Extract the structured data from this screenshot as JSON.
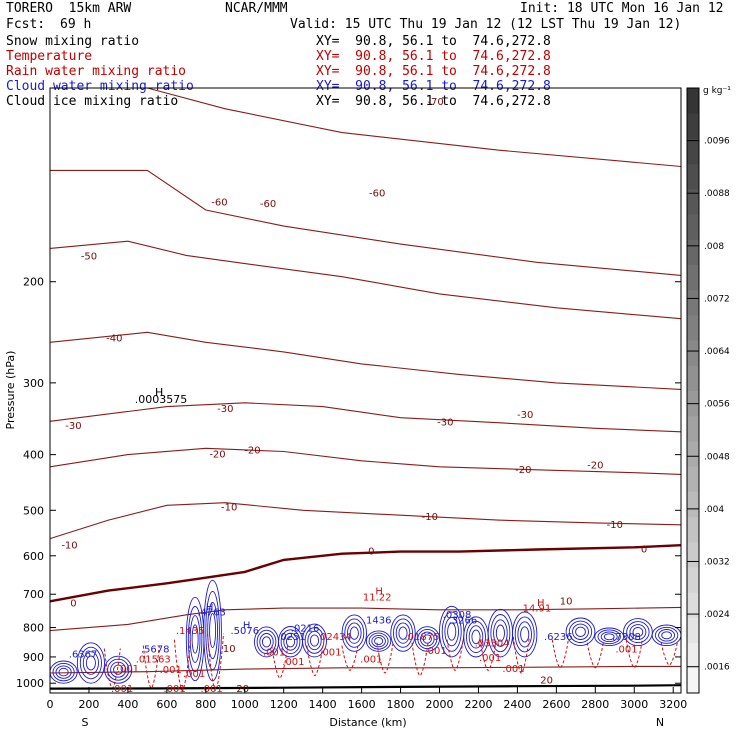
{
  "header": {
    "model": "TORERO  15km ARW",
    "center": "NCAR/MMM",
    "init": "Init: 18 UTC Mon 16 Jan 12",
    "fcst_label": "Fcst:",
    "fcst_value": "69 h",
    "valid": "Valid: 15 UTC Thu 19 Jan 12 (12 LST Thu 19 Jan 12)"
  },
  "legend": [
    {
      "label": "Snow mixing ratio",
      "xy": "XY=  90.8, 56.1 to  74.6,272.8",
      "color": "#000000"
    },
    {
      "label": "Temperature",
      "xy": "XY=  90.8, 56.1 to  74.6,272.8",
      "color": "#c00000"
    },
    {
      "label": "Rain water mixing ratio",
      "xy": "XY=  90.8, 56.1 to  74.6,272.8",
      "color": "#c00000"
    },
    {
      "label": "Cloud water mixing ratio",
      "xy": "XY=  90.8, 56.1 to  74.6,272.8",
      "color": "#1a1ad0"
    },
    {
      "label": "Cloud ice mixing ratio",
      "xy": "XY=  90.8, 56.1 to  74.6,272.8",
      "color": "#000000"
    }
  ],
  "chart_data": {
    "type": "cross-section contour",
    "xlabel": "Distance (km)",
    "ylabel": "Pressure (hPa)",
    "x_ticks": [
      0,
      200,
      400,
      600,
      800,
      1000,
      1200,
      1400,
      1600,
      1800,
      2000,
      2200,
      2400,
      2600,
      2800,
      3000,
      3200
    ],
    "xlim": [
      0,
      3240
    ],
    "y_ticks": [
      200,
      300,
      400,
      500,
      600,
      700,
      800,
      900,
      1000
    ],
    "ylim": [
      1040,
      92
    ],
    "y_log": true,
    "x_endpoints": {
      "left": "S",
      "right": "N"
    },
    "colorbar": {
      "unit": "g kg⁻¹",
      "ticks": [
        ".0016",
        ".0024",
        ".0032",
        ".004",
        ".0048",
        ".0056",
        ".0064",
        ".0072",
        ".008",
        ".0088",
        ".0096"
      ],
      "tick_values": [
        0.0016,
        0.0024,
        0.0032,
        0.004,
        0.0048,
        0.0056,
        0.0064,
        0.0072,
        0.008,
        0.0088,
        0.0096
      ],
      "range": [
        0.0012,
        0.0104
      ]
    },
    "temperature_contours": [
      {
        "value": -70,
        "points": [
          [
            500,
            92
          ],
          [
            900,
            100
          ],
          [
            1500,
            110
          ],
          [
            2300,
            118
          ],
          [
            3240,
            126
          ]
        ]
      },
      {
        "value": -60,
        "points": [
          [
            0,
            128
          ],
          [
            500,
            128
          ],
          [
            800,
            150
          ],
          [
            1200,
            160
          ],
          [
            1800,
            172
          ],
          [
            2500,
            185
          ],
          [
            3240,
            195
          ]
        ]
      },
      {
        "value": -50,
        "points": [
          [
            0,
            175
          ],
          [
            400,
            170
          ],
          [
            700,
            180
          ],
          [
            1000,
            186
          ],
          [
            1500,
            196
          ],
          [
            2000,
            210
          ],
          [
            2600,
            222
          ],
          [
            3240,
            232
          ]
        ]
      },
      {
        "value": -40,
        "points": [
          [
            0,
            255
          ],
          [
            500,
            245
          ],
          [
            800,
            255
          ],
          [
            1200,
            265
          ],
          [
            1600,
            278
          ],
          [
            2100,
            290
          ],
          [
            2600,
            300
          ],
          [
            3240,
            308
          ]
        ]
      },
      {
        "value": -30,
        "points": [
          [
            0,
            350
          ],
          [
            600,
            330
          ],
          [
            1000,
            325
          ],
          [
            1400,
            330
          ],
          [
            1800,
            345
          ],
          [
            2300,
            352
          ],
          [
            2800,
            360
          ],
          [
            3240,
            365
          ]
        ]
      },
      {
        "value": -20,
        "points": [
          [
            0,
            420
          ],
          [
            400,
            400
          ],
          [
            800,
            390
          ],
          [
            1200,
            395
          ],
          [
            1600,
            410
          ],
          [
            2000,
            420
          ],
          [
            2500,
            425
          ],
          [
            3000,
            430
          ],
          [
            3240,
            433
          ]
        ]
      },
      {
        "value": -10,
        "points": [
          [
            0,
            560
          ],
          [
            300,
            520
          ],
          [
            600,
            490
          ],
          [
            900,
            485
          ],
          [
            1300,
            500
          ],
          [
            1800,
            510
          ],
          [
            2300,
            520
          ],
          [
            2800,
            526
          ],
          [
            3240,
            530
          ]
        ]
      },
      {
        "value": 0,
        "points": [
          [
            0,
            720
          ],
          [
            300,
            690
          ],
          [
            600,
            670
          ],
          [
            800,
            655
          ],
          [
            1000,
            640
          ],
          [
            1200,
            610
          ],
          [
            1500,
            595
          ],
          [
            1800,
            590
          ],
          [
            2100,
            590
          ],
          [
            2500,
            585
          ],
          [
            3000,
            580
          ],
          [
            3240,
            575
          ]
        ]
      },
      {
        "value": 10,
        "points": [
          [
            0,
            810
          ],
          [
            400,
            790
          ],
          [
            700,
            760
          ],
          [
            900,
            745
          ],
          [
            1200,
            740
          ],
          [
            1600,
            740
          ],
          [
            2000,
            745
          ],
          [
            2400,
            745
          ],
          [
            2800,
            742
          ],
          [
            3240,
            738
          ]
        ]
      },
      {
        "value": 20,
        "points": [
          [
            0,
            960
          ],
          [
            500,
            955
          ],
          [
            1000,
            945
          ],
          [
            1500,
            940
          ],
          [
            2000,
            940
          ],
          [
            2500,
            938
          ],
          [
            3000,
            935
          ],
          [
            3240,
            935
          ]
        ]
      }
    ],
    "cloud_water_regions": [
      {
        "x_start": 0,
        "x_end": 420,
        "p_top": 850,
        "p_bottom": 1000
      },
      {
        "x_start": 700,
        "x_end": 880,
        "p_top": 650,
        "p_bottom": 990
      },
      {
        "x_start": 1050,
        "x_end": 1420,
        "p_top": 780,
        "p_bottom": 900
      },
      {
        "x_start": 1500,
        "x_end": 2000,
        "p_top": 760,
        "p_bottom": 880
      },
      {
        "x_start": 2000,
        "x_end": 2500,
        "p_top": 730,
        "p_bottom": 900
      },
      {
        "x_start": 2650,
        "x_end": 3240,
        "p_top": 770,
        "p_bottom": 860
      }
    ],
    "rain_columns": [
      {
        "x": 320,
        "p_top": 870,
        "p_bottom": 1020
      },
      {
        "x": 520,
        "p_top": 860,
        "p_bottom": 1020
      },
      {
        "x": 680,
        "p_top": 840,
        "p_bottom": 1030
      },
      {
        "x": 850,
        "p_top": 820,
        "p_bottom": 1030
      },
      {
        "x": 1180,
        "p_top": 860,
        "p_bottom": 980
      },
      {
        "x": 1360,
        "p_top": 860,
        "p_bottom": 970
      },
      {
        "x": 1540,
        "p_top": 860,
        "p_bottom": 950
      },
      {
        "x": 1720,
        "p_top": 850,
        "p_bottom": 960
      },
      {
        "x": 1900,
        "p_top": 850,
        "p_bottom": 970
      },
      {
        "x": 2080,
        "p_top": 840,
        "p_bottom": 950
      },
      {
        "x": 2250,
        "p_top": 840,
        "p_bottom": 950
      },
      {
        "x": 2420,
        "p_top": 830,
        "p_bottom": 960
      },
      {
        "x": 2620,
        "p_top": 840,
        "p_bottom": 940
      },
      {
        "x": 2800,
        "p_top": 850,
        "p_bottom": 940
      },
      {
        "x": 3000,
        "p_top": 840,
        "p_bottom": 940
      },
      {
        "x": 3180,
        "p_top": 850,
        "p_bottom": 930
      }
    ],
    "ground_surface": [
      [
        0,
        1022
      ],
      [
        600,
        1021
      ],
      [
        1200,
        1018
      ],
      [
        1800,
        1015
      ],
      [
        2400,
        1012
      ],
      [
        3000,
        1010
      ],
      [
        3240,
        1008
      ]
    ],
    "annotations": [
      {
        "text": "H",
        "x": 560,
        "p": 311,
        "class": "black"
      },
      {
        "text": ".0003575",
        "x": 570,
        "p": 320,
        "class": "black"
      },
      {
        "text": "H",
        "x": 1690,
        "p": 690,
        "class": "red"
      },
      {
        "text": "11.22",
        "x": 1680,
        "p": 706,
        "class": "red"
      },
      {
        "text": "H",
        "x": 2520,
        "p": 722,
        "class": "red"
      },
      {
        "text": "14.91",
        "x": 2500,
        "p": 738,
        "class": "red"
      },
      {
        "text": "H",
        "x": 820,
        "p": 735,
        "class": "blue"
      },
      {
        "text": ".4763",
        "x": 830,
        "p": 750,
        "class": "blue"
      },
      {
        "text": "H",
        "x": 1010,
        "p": 790,
        "class": "blue"
      },
      {
        "text": ".5076",
        "x": 1000,
        "p": 808,
        "class": "blue"
      },
      {
        "text": ".0251",
        "x": 1240,
        "p": 828,
        "class": "blue"
      },
      {
        "text": ".0216",
        "x": 1310,
        "p": 800,
        "class": "blue"
      },
      {
        "text": ".02434",
        "x": 1460,
        "p": 828,
        "class": "red"
      },
      {
        "text": ".1436",
        "x": 1680,
        "p": 774,
        "class": "blue"
      },
      {
        "text": ".01875",
        "x": 1910,
        "p": 828,
        "class": "red"
      },
      {
        "text": ".3266",
        "x": 2120,
        "p": 774,
        "class": "blue"
      },
      {
        "text": ".0308",
        "x": 2090,
        "p": 757,
        "class": "blue"
      },
      {
        "text": ".03504",
        "x": 2270,
        "p": 850,
        "class": "red"
      },
      {
        "text": ".6236",
        "x": 2610,
        "p": 828,
        "class": "blue"
      },
      {
        "text": ".7308",
        "x": 2960,
        "p": 828,
        "class": "blue"
      },
      {
        "text": ".5678",
        "x": 540,
        "p": 870,
        "class": "blue"
      },
      {
        "text": ".01563",
        "x": 530,
        "p": 905,
        "class": "red"
      },
      {
        "text": ".6367",
        "x": 170,
        "p": 888,
        "class": "blue"
      },
      {
        "text": ".1435",
        "x": 720,
        "p": 808,
        "class": "red"
      },
      {
        "text": ".001",
        "x": 1150,
        "p": 880,
        "class": "red"
      },
      {
        "text": ".001",
        "x": 1440,
        "p": 880,
        "class": "red"
      },
      {
        "text": ".001",
        "x": 1650,
        "p": 905,
        "class": "red"
      },
      {
        "text": ".001",
        "x": 1980,
        "p": 875,
        "class": "red"
      },
      {
        "text": ".001",
        "x": 2260,
        "p": 900,
        "class": "red"
      },
      {
        "text": ".001",
        "x": 2960,
        "p": 870,
        "class": "red"
      },
      {
        "text": ".001",
        "x": 1250,
        "p": 915,
        "class": "red"
      },
      {
        "text": ".001",
        "x": 2380,
        "p": 940,
        "class": "red"
      },
      {
        "text": ".001",
        "x": 620,
        "p": 945,
        "class": "red"
      },
      {
        "text": ".001",
        "x": 740,
        "p": 960,
        "class": "red"
      },
      {
        "text": ".001",
        "x": 400,
        "p": 940,
        "class": "red"
      },
      {
        "text": ".001",
        "x": 370,
        "p": 1020,
        "class": "red"
      },
      {
        "text": ".001",
        "x": 640,
        "p": 1020,
        "class": "red"
      },
      {
        "text": ".001",
        "x": 830,
        "p": 1020,
        "class": "red"
      },
      {
        "text": "20",
        "x": 990,
        "p": 1020,
        "class": "darkred"
      },
      {
        "text": "20",
        "x": 2550,
        "p": 985,
        "class": "darkred"
      },
      {
        "text": "10",
        "x": 920,
        "p": 868,
        "class": "darkred"
      },
      {
        "text": "10",
        "x": 2650,
        "p": 718,
        "class": "darkred"
      },
      {
        "text": "0",
        "x": 120,
        "p": 723,
        "class": "darkred"
      },
      {
        "text": "0",
        "x": 1650,
        "p": 588,
        "class": "darkred"
      },
      {
        "text": "0",
        "x": 3050,
        "p": 583,
        "class": "darkred"
      },
      {
        "text": "-10",
        "x": 100,
        "p": 573,
        "class": "darkred"
      },
      {
        "text": "-10",
        "x": 920,
        "p": 492,
        "class": "darkred"
      },
      {
        "text": "-10",
        "x": 1950,
        "p": 512,
        "class": "darkred"
      },
      {
        "text": "-10",
        "x": 2900,
        "p": 528,
        "class": "darkred"
      },
      {
        "text": "-20",
        "x": 860,
        "p": 398,
        "class": "darkred"
      },
      {
        "text": "-20",
        "x": 1040,
        "p": 392,
        "class": "darkred"
      },
      {
        "text": "-20",
        "x": 2430,
        "p": 424,
        "class": "darkred"
      },
      {
        "text": "-20",
        "x": 2800,
        "p": 416,
        "class": "darkred"
      },
      {
        "text": "-30",
        "x": 120,
        "p": 355,
        "class": "darkred"
      },
      {
        "text": "-30",
        "x": 900,
        "p": 332,
        "class": "darkred"
      },
      {
        "text": "-30",
        "x": 2030,
        "p": 350,
        "class": "darkred"
      },
      {
        "text": "-30",
        "x": 2440,
        "p": 340,
        "class": "darkred"
      },
      {
        "text": "-40",
        "x": 330,
        "p": 250,
        "class": "darkred"
      },
      {
        "text": "-50",
        "x": 200,
        "p": 180,
        "class": "darkred"
      },
      {
        "text": "-60",
        "x": 870,
        "p": 145,
        "class": "darkred"
      },
      {
        "text": "-60",
        "x": 1120,
        "p": 146,
        "class": "darkred"
      },
      {
        "text": "-60",
        "x": 1680,
        "p": 140,
        "class": "darkred"
      },
      {
        "text": "-70",
        "x": 1980,
        "p": 97,
        "class": "darkred"
      }
    ]
  }
}
